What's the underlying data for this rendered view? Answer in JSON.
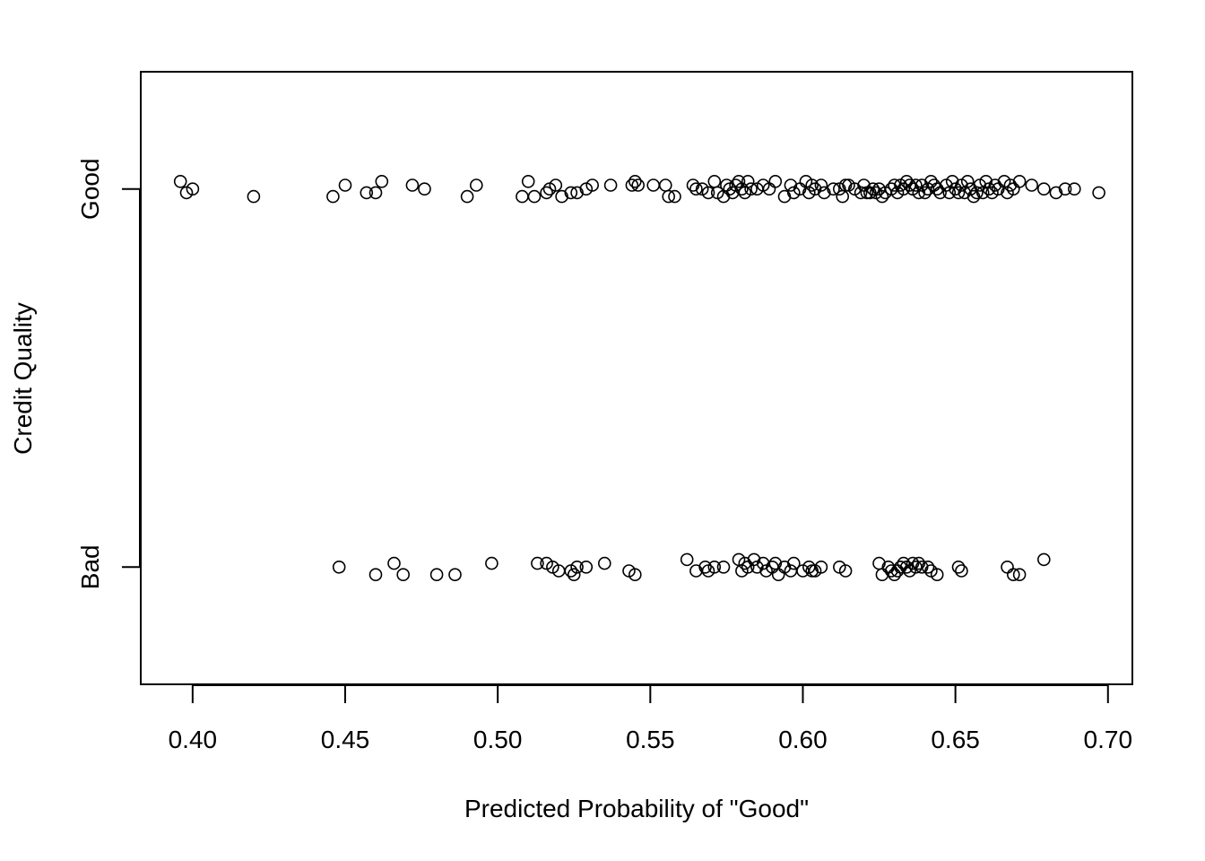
{
  "chart_data": {
    "type": "scatter",
    "title": "",
    "xlabel": "Predicted Probability of \"Good\"",
    "ylabel": "Credit Quality",
    "xlim": [
      0.383,
      0.708
    ],
    "x_ticks": [
      "0.40",
      "0.45",
      "0.50",
      "0.55",
      "0.60",
      "0.65",
      "0.70"
    ],
    "x_tick_values": [
      0.4,
      0.45,
      0.5,
      0.55,
      0.6,
      0.65,
      0.7
    ],
    "categories": [
      "Bad",
      "Good"
    ],
    "ylim": [
      0.69,
      2.31
    ],
    "grid": false,
    "legend": "none",
    "marker": "open-circle",
    "series": [
      {
        "category": "Good",
        "points": [
          [
            0.396,
            2.02
          ],
          [
            0.398,
            1.99
          ],
          [
            0.4,
            2.0
          ],
          [
            0.42,
            1.98
          ],
          [
            0.446,
            1.98
          ],
          [
            0.45,
            2.01
          ],
          [
            0.457,
            1.99
          ],
          [
            0.46,
            1.99
          ],
          [
            0.462,
            2.02
          ],
          [
            0.472,
            2.01
          ],
          [
            0.476,
            2.0
          ],
          [
            0.49,
            1.98
          ],
          [
            0.493,
            2.01
          ],
          [
            0.508,
            1.98
          ],
          [
            0.51,
            2.02
          ],
          [
            0.512,
            1.98
          ],
          [
            0.516,
            1.99
          ],
          [
            0.517,
            2.0
          ],
          [
            0.519,
            2.01
          ],
          [
            0.521,
            1.98
          ],
          [
            0.524,
            1.99
          ],
          [
            0.526,
            1.99
          ],
          [
            0.529,
            2.0
          ],
          [
            0.531,
            2.01
          ],
          [
            0.537,
            2.01
          ],
          [
            0.544,
            2.01
          ],
          [
            0.545,
            2.02
          ],
          [
            0.546,
            2.01
          ],
          [
            0.551,
            2.01
          ],
          [
            0.555,
            2.01
          ],
          [
            0.556,
            1.98
          ],
          [
            0.558,
            1.98
          ],
          [
            0.564,
            2.01
          ],
          [
            0.565,
            2.0
          ],
          [
            0.567,
            2.0
          ],
          [
            0.569,
            1.99
          ],
          [
            0.571,
            2.02
          ],
          [
            0.572,
            1.99
          ],
          [
            0.574,
            1.98
          ],
          [
            0.575,
            2.01
          ],
          [
            0.576,
            2.0
          ],
          [
            0.577,
            1.99
          ],
          [
            0.578,
            2.01
          ],
          [
            0.579,
            2.02
          ],
          [
            0.58,
            2.0
          ],
          [
            0.581,
            1.99
          ],
          [
            0.582,
            2.02
          ],
          [
            0.583,
            2.0
          ],
          [
            0.585,
            2.0
          ],
          [
            0.587,
            2.01
          ],
          [
            0.589,
            2.0
          ],
          [
            0.591,
            2.02
          ],
          [
            0.594,
            1.98
          ],
          [
            0.596,
            2.01
          ],
          [
            0.597,
            1.99
          ],
          [
            0.599,
            2.0
          ],
          [
            0.601,
            2.02
          ],
          [
            0.602,
            1.99
          ],
          [
            0.603,
            2.01
          ],
          [
            0.604,
            2.0
          ],
          [
            0.606,
            2.01
          ],
          [
            0.607,
            1.99
          ],
          [
            0.61,
            2.0
          ],
          [
            0.612,
            2.0
          ],
          [
            0.613,
            1.98
          ],
          [
            0.614,
            2.01
          ],
          [
            0.615,
            2.01
          ],
          [
            0.617,
            2.0
          ],
          [
            0.619,
            1.99
          ],
          [
            0.62,
            2.01
          ],
          [
            0.621,
            1.99
          ],
          [
            0.622,
            1.99
          ],
          [
            0.623,
            2.0
          ],
          [
            0.624,
            1.99
          ],
          [
            0.625,
            2.0
          ],
          [
            0.626,
            1.98
          ],
          [
            0.627,
            1.99
          ],
          [
            0.629,
            2.0
          ],
          [
            0.63,
            2.01
          ],
          [
            0.631,
            1.99
          ],
          [
            0.632,
            2.01
          ],
          [
            0.633,
            2.0
          ],
          [
            0.634,
            2.02
          ],
          [
            0.635,
            2.01
          ],
          [
            0.636,
            2.0
          ],
          [
            0.637,
            2.01
          ],
          [
            0.638,
            1.99
          ],
          [
            0.639,
            2.01
          ],
          [
            0.64,
            1.99
          ],
          [
            0.641,
            2.0
          ],
          [
            0.642,
            2.02
          ],
          [
            0.643,
            2.01
          ],
          [
            0.644,
            2.0
          ],
          [
            0.645,
            1.99
          ],
          [
            0.647,
            2.01
          ],
          [
            0.648,
            1.99
          ],
          [
            0.649,
            2.02
          ],
          [
            0.65,
            2.0
          ],
          [
            0.651,
            1.99
          ],
          [
            0.652,
            2.01
          ],
          [
            0.653,
            1.99
          ],
          [
            0.654,
            2.02
          ],
          [
            0.655,
            2.0
          ],
          [
            0.656,
            1.98
          ],
          [
            0.657,
            1.99
          ],
          [
            0.658,
            2.01
          ],
          [
            0.659,
            1.99
          ],
          [
            0.66,
            2.02
          ],
          [
            0.661,
            2.0
          ],
          [
            0.662,
            1.99
          ],
          [
            0.663,
            2.01
          ],
          [
            0.664,
            2.0
          ],
          [
            0.666,
            2.02
          ],
          [
            0.667,
            1.99
          ],
          [
            0.668,
            2.01
          ],
          [
            0.669,
            2.0
          ],
          [
            0.671,
            2.02
          ],
          [
            0.675,
            2.01
          ],
          [
            0.679,
            2.0
          ],
          [
            0.683,
            1.99
          ],
          [
            0.686,
            2.0
          ],
          [
            0.689,
            2.0
          ],
          [
            0.697,
            1.99
          ]
        ]
      },
      {
        "category": "Bad",
        "points": [
          [
            0.448,
            1.0
          ],
          [
            0.46,
            0.98
          ],
          [
            0.466,
            1.01
          ],
          [
            0.469,
            0.98
          ],
          [
            0.48,
            0.98
          ],
          [
            0.486,
            0.98
          ],
          [
            0.498,
            1.01
          ],
          [
            0.513,
            1.01
          ],
          [
            0.516,
            1.01
          ],
          [
            0.518,
            1.0
          ],
          [
            0.52,
            0.99
          ],
          [
            0.524,
            0.99
          ],
          [
            0.525,
            0.98
          ],
          [
            0.526,
            1.0
          ],
          [
            0.529,
            1.0
          ],
          [
            0.535,
            1.01
          ],
          [
            0.543,
            0.99
          ],
          [
            0.545,
            0.98
          ],
          [
            0.562,
            1.02
          ],
          [
            0.565,
            0.99
          ],
          [
            0.568,
            1.0
          ],
          [
            0.569,
            0.99
          ],
          [
            0.571,
            1.0
          ],
          [
            0.574,
            1.0
          ],
          [
            0.579,
            1.02
          ],
          [
            0.58,
            0.99
          ],
          [
            0.581,
            1.01
          ],
          [
            0.582,
            1.0
          ],
          [
            0.584,
            1.02
          ],
          [
            0.585,
            1.0
          ],
          [
            0.587,
            1.01
          ],
          [
            0.588,
            0.99
          ],
          [
            0.59,
            1.0
          ],
          [
            0.591,
            1.01
          ],
          [
            0.592,
            0.98
          ],
          [
            0.594,
            1.0
          ],
          [
            0.596,
            0.99
          ],
          [
            0.597,
            1.01
          ],
          [
            0.6,
            0.99
          ],
          [
            0.602,
            1.0
          ],
          [
            0.603,
            0.99
          ],
          [
            0.604,
            0.99
          ],
          [
            0.606,
            1.0
          ],
          [
            0.612,
            1.0
          ],
          [
            0.614,
            0.99
          ],
          [
            0.625,
            1.01
          ],
          [
            0.626,
            0.98
          ],
          [
            0.628,
            1.0
          ],
          [
            0.629,
            0.99
          ],
          [
            0.63,
            0.98
          ],
          [
            0.631,
            0.99
          ],
          [
            0.632,
            1.0
          ],
          [
            0.633,
            1.01
          ],
          [
            0.634,
            1.0
          ],
          [
            0.635,
            0.99
          ],
          [
            0.636,
            1.01
          ],
          [
            0.637,
            1.0
          ],
          [
            0.638,
            1.01
          ],
          [
            0.639,
            1.0
          ],
          [
            0.641,
            1.0
          ],
          [
            0.642,
            0.99
          ],
          [
            0.644,
            0.98
          ],
          [
            0.651,
            1.0
          ],
          [
            0.652,
            0.99
          ],
          [
            0.667,
            1.0
          ],
          [
            0.669,
            0.98
          ],
          [
            0.671,
            0.98
          ],
          [
            0.679,
            1.02
          ]
        ]
      }
    ]
  }
}
